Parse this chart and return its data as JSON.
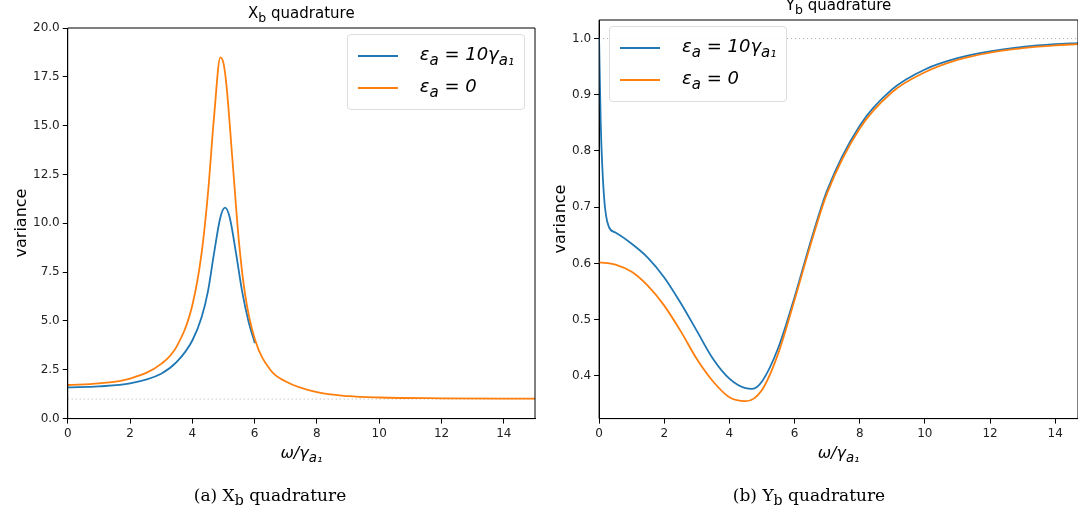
{
  "chart_data": [
    {
      "type": "line",
      "title": "X$_{b}$ quadrature",
      "xlabel": "ω/γ$_{a₁}$",
      "ylabel": "variance",
      "legend": "top right",
      "marker": "none",
      "line_style": "solid",
      "xlim": [
        0,
        15
      ],
      "xticks": [
        0,
        2,
        4,
        6,
        8,
        10,
        12,
        14
      ],
      "ylim": [
        0,
        20
      ],
      "yticks": [
        {
          "value": 0,
          "label": "0.0"
        },
        {
          "value": 2.5,
          "label": "2.5"
        },
        {
          "value": 5,
          "label": "5.0"
        },
        {
          "value": 7.5,
          "label": "7.5"
        },
        {
          "value": 10,
          "label": "10.0"
        },
        {
          "value": 12.5,
          "label": "12.5"
        },
        {
          "value": 15,
          "label": "15.0"
        },
        {
          "value": 17.5,
          "label": "17.5"
        },
        {
          "value": 20,
          "label": "20.0"
        }
      ],
      "ref_lines": [
        {
          "axis": "y",
          "value": 1,
          "color": "#aaaaaa",
          "line_style": "dotted"
        }
      ],
      "annotations": [
        "(a) X$_{b}$ quadrature"
      ],
      "series": [
        {
          "name": "ε$_{a}$ = 10γ$_{a₁}$",
          "color": "#1f77b4",
          "x": [
            0,
            1,
            2,
            3,
            3.5,
            4,
            4.3,
            4.5,
            4.7,
            4.9,
            5.05,
            5.2,
            5.4,
            5.6,
            5.8,
            6
          ],
          "values": [
            1.6,
            1.65,
            1.8,
            2.3,
            2.9,
            4.0,
            5.2,
            6.5,
            8.5,
            10.3,
            10.8,
            10.3,
            8.5,
            6.5,
            5.0,
            3.9
          ]
        },
        {
          "name": "ε$_{a}$ = 0",
          "color": "#ff7f0e",
          "x": [
            0,
            1,
            2,
            3,
            3.5,
            4,
            4.3,
            4.5,
            4.7,
            4.9,
            5.0,
            5.1,
            5.3,
            5.5,
            5.7,
            6,
            6.5,
            7,
            8,
            9,
            10,
            12,
            15
          ],
          "values": [
            1.72,
            1.8,
            2.05,
            2.8,
            3.7,
            5.8,
            8.5,
            11.5,
            15.5,
            18.5,
            18.2,
            17.0,
            13.0,
            9.0,
            6.3,
            4.1,
            2.5,
            1.9,
            1.35,
            1.15,
            1.08,
            1.04,
            1.02
          ]
        }
      ]
    },
    {
      "type": "line",
      "title": "Y$_{b}$ quadrature",
      "xlabel": "ω/γ$_{a₁}$",
      "ylabel": "variance",
      "legend": "top left",
      "marker": "none",
      "line_style": "solid",
      "xlim": [
        0,
        14.7
      ],
      "xticks": [
        0,
        2,
        4,
        6,
        8,
        10,
        12,
        14
      ],
      "ylim": [
        0.324,
        1.033
      ],
      "yticks": [
        {
          "value": 0.4,
          "label": "0.4"
        },
        {
          "value": 0.5,
          "label": "0.5"
        },
        {
          "value": 0.6,
          "label": "0.6"
        },
        {
          "value": 0.7,
          "label": "0.7"
        },
        {
          "value": 0.8,
          "label": "0.8"
        },
        {
          "value": 0.9,
          "label": "0.9"
        },
        {
          "value": 1,
          "label": "1.0"
        }
      ],
      "ref_lines": [
        {
          "axis": "y",
          "value": 1,
          "color": "#aaaaaa",
          "line_style": "dotted"
        }
      ],
      "annotations": [
        "(b) Y$_{b}$ quadrature"
      ],
      "series": [
        {
          "name": "ε$_{a}$ = 10γ$_{a₁}$",
          "color": "#1f77b4",
          "x": [
            0,
            0.05,
            0.15,
            0.3,
            0.5,
            1,
            1.5,
            2,
            2.5,
            3,
            3.5,
            4,
            4.5,
            4.7,
            5,
            5.5,
            6,
            6.5,
            7,
            8,
            9,
            10,
            11,
            12,
            13,
            14,
            14.7
          ],
          "values": [
            1.0,
            0.85,
            0.72,
            0.665,
            0.655,
            0.635,
            0.61,
            0.575,
            0.53,
            0.48,
            0.43,
            0.395,
            0.378,
            0.377,
            0.39,
            0.45,
            0.54,
            0.64,
            0.73,
            0.845,
            0.91,
            0.945,
            0.965,
            0.977,
            0.985,
            0.99,
            0.992
          ]
        },
        {
          "name": "ε$_{a}$ = 0",
          "color": "#ff7f0e",
          "x": [
            0,
            0.5,
            1,
            1.5,
            2,
            2.5,
            3,
            3.5,
            4,
            4.5,
            5,
            5.5,
            6,
            6.5,
            7,
            8,
            9,
            10,
            11,
            12,
            13,
            14,
            14.7
          ],
          "values": [
            0.602,
            0.598,
            0.585,
            0.56,
            0.525,
            0.48,
            0.43,
            0.39,
            0.362,
            0.355,
            0.375,
            0.44,
            0.535,
            0.635,
            0.725,
            0.84,
            0.905,
            0.94,
            0.962,
            0.975,
            0.983,
            0.988,
            0.99
          ]
        }
      ]
    }
  ]
}
